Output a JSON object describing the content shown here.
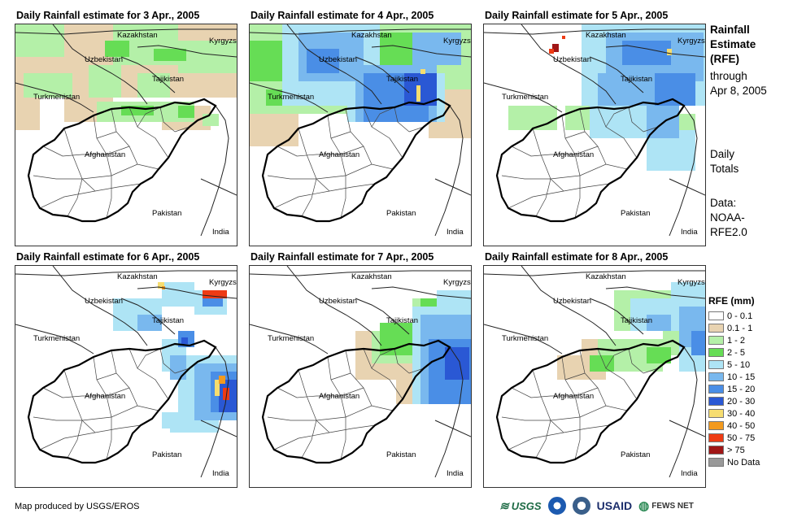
{
  "panels": [
    {
      "title": "Daily Rainfall estimate for 3 Apr., 2005"
    },
    {
      "title": "Daily Rainfall estimate for 4 Apr., 2005"
    },
    {
      "title": "Daily Rainfall estimate for 5 Apr., 2005"
    },
    {
      "title": "Daily Rainfall estimate for 6 Apr., 2005"
    },
    {
      "title": "Daily Rainfall estimate for 7 Apr., 2005"
    },
    {
      "title": "Daily Rainfall estimate for 8 Apr., 2005"
    }
  ],
  "countries": {
    "kazakhstan": "Kazakhstan",
    "kyrgyzstan": "Kyrgyzstan",
    "uzbekistan": "Uzbekistan",
    "tajikistan": "Tajikistan",
    "turkmenistan": "Turkmenistan",
    "afghanistan": "Afghanistan",
    "pakistan": "Pakistan",
    "india": "India"
  },
  "side": {
    "title_line1": "Rainfall",
    "title_line2": "Estimate",
    "title_line3": "(RFE)",
    "through_line1": "through",
    "through_line2": "Apr 8, 2005",
    "daily_line1": "Daily",
    "daily_line2": "Totals",
    "data_line1": "Data:",
    "data_line2": "NOAA-",
    "data_line3": "RFE2.0"
  },
  "legend": {
    "title": "RFE (mm)",
    "items": [
      {
        "label": "0 - 0.1",
        "color": "#ffffff"
      },
      {
        "label": "0.1 - 1",
        "color": "#e8d3b1"
      },
      {
        "label": "1 - 2",
        "color": "#b4f0a8"
      },
      {
        "label": "2 - 5",
        "color": "#66dd55"
      },
      {
        "label": "5 - 10",
        "color": "#aee4f5"
      },
      {
        "label": "10 - 15",
        "color": "#79b8ee"
      },
      {
        "label": "15 - 20",
        "color": "#4a8ee6"
      },
      {
        "label": "20 - 30",
        "color": "#2a58d4"
      },
      {
        "label": "30 - 40",
        "color": "#f6dd70"
      },
      {
        "label": "40 - 50",
        "color": "#f39a1e"
      },
      {
        "label": "50 - 75",
        "color": "#ee3b14"
      },
      {
        "label": "> 75",
        "color": "#a01616"
      },
      {
        "label": "No Data",
        "color": "#999999"
      }
    ]
  },
  "credit": "Map produced by USGS/EROS",
  "logos": {
    "usgs": "USGS",
    "usaid": "USAID",
    "fewsnet": "FEWS NET"
  }
}
